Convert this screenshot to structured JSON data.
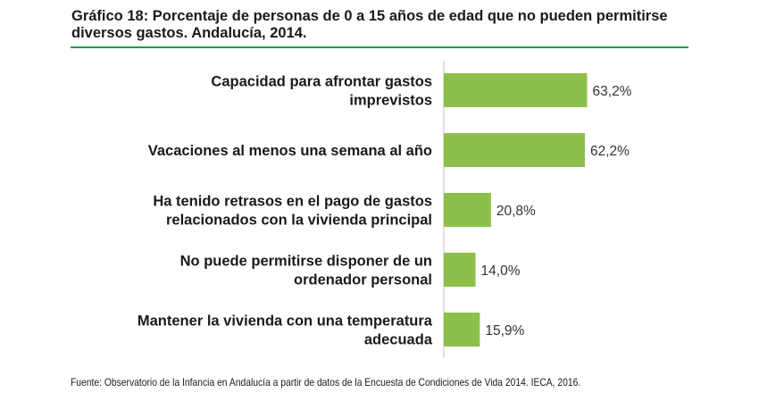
{
  "title": "Gráfico 18: Porcentaje de personas de 0 a 15 años de edad que no pueden permitirse diversos gastos. Andalucía, 2014.",
  "source": "Fuente: Observatorio de la Infancia en Andalucía a partir de datos de la Encuesta de Condiciones de Vida 2014. IECA, 2016.",
  "colors": {
    "bar": "#8cc04b",
    "accent_rule": "#1f9a4c",
    "axis": "#bfbfbf"
  },
  "chart_data": {
    "type": "bar",
    "orientation": "horizontal",
    "categories": [
      "Capacidad para afrontar gastos imprevistos",
      "Vacaciones al menos una semana al año",
      "Ha tenido retrasos en el pago de gastos relacionados con la vivienda principal",
      "No puede permitirse disponer de un ordenador personal",
      "Mantener la vivienda con una temperatura adecuada"
    ],
    "category_lines": [
      [
        "Capacidad para afrontar gastos",
        "imprevistos"
      ],
      [
        "Vacaciones al menos una semana al año"
      ],
      [
        "Ha tenido retrasos en el pago de gastos",
        "relacionados con la vivienda principal"
      ],
      [
        "No puede permitirse disponer de un",
        "ordenador personal"
      ],
      [
        "Mantener la vivienda con una temperatura",
        "adecuada"
      ]
    ],
    "values": [
      63.2,
      62.2,
      20.8,
      14.0,
      15.9
    ],
    "value_labels": [
      "63,2%",
      "62,2%",
      "20,8%",
      "14,0%",
      "15,9%"
    ],
    "unit": "%"
  }
}
